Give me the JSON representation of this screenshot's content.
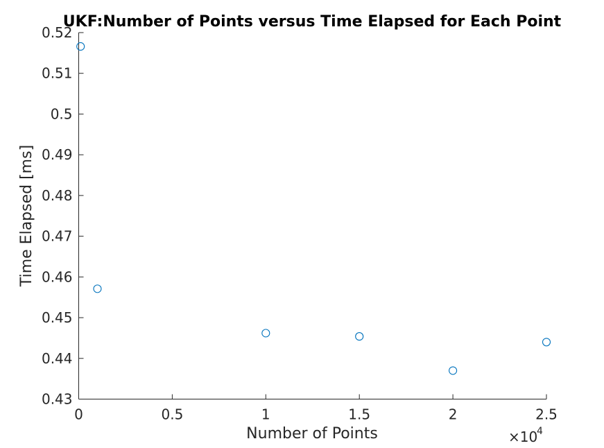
{
  "chart_data": {
    "type": "scatter",
    "title": "UKF:Number of Points versus Time Elapsed for Each Point",
    "xlabel": "Number of Points",
    "ylabel": "Time Elapsed [ms]",
    "x_exponent_prefix": "×10",
    "x_exponent_power": "4",
    "xlim": [
      0,
      25000
    ],
    "ylim": [
      0.43,
      0.52
    ],
    "x_ticks": [
      0,
      5000,
      10000,
      15000,
      20000,
      25000
    ],
    "x_tick_labels": [
      "0",
      "0.5",
      "1",
      "1.5",
      "2",
      "2.5"
    ],
    "y_ticks": [
      0.43,
      0.44,
      0.45,
      0.46,
      0.47,
      0.48,
      0.49,
      0.5,
      0.51,
      0.52
    ],
    "y_tick_labels": [
      "0.43",
      "0.44",
      "0.45",
      "0.46",
      "0.47",
      "0.48",
      "0.49",
      "0.5",
      "0.51",
      "0.52"
    ],
    "grid": false,
    "marker": "circle",
    "marker_color": "#0072BD",
    "series": [
      {
        "x": [
          100,
          1000,
          10000,
          15000,
          20000,
          25000
        ],
        "y": [
          0.5166,
          0.4571,
          0.4462,
          0.4454,
          0.437,
          0.444
        ]
      }
    ]
  }
}
